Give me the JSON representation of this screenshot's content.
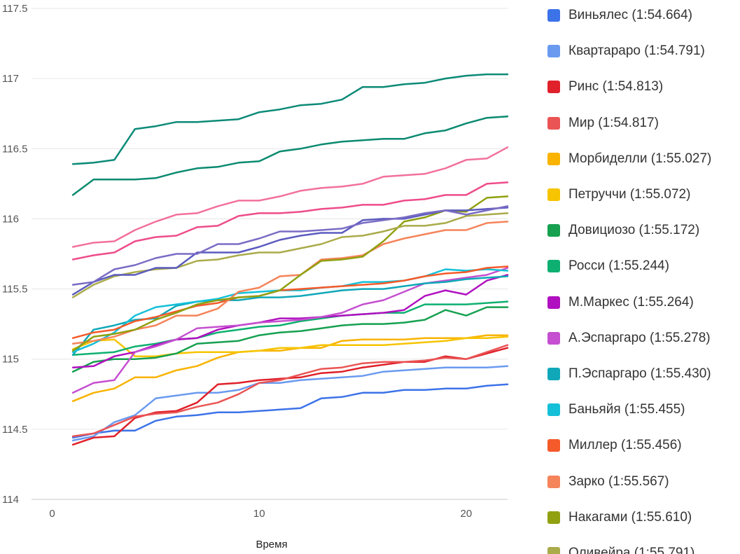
{
  "chart_data": {
    "type": "line",
    "title": "",
    "xlabel": "Время",
    "ylabel": "",
    "xlim": [
      -1,
      22
    ],
    "ylim": [
      114,
      117.5
    ],
    "x_ticks": [
      0,
      10,
      20
    ],
    "y_ticks": [
      114,
      114.5,
      115,
      115.5,
      116,
      116.5,
      117,
      117.5
    ],
    "x_tick_labels": [
      "0",
      "10",
      "20"
    ],
    "y_tick_labels": [
      "114",
      "114.5",
      "115",
      "115.5",
      "116",
      "116.5",
      "117",
      "117.5"
    ],
    "grid": "horizontal",
    "legend_position": "right",
    "x": [
      1,
      2,
      3,
      4,
      5,
      6,
      7,
      8,
      9,
      10,
      11,
      12,
      13,
      14,
      15,
      16,
      17,
      18,
      19,
      20,
      21,
      22
    ],
    "series": [
      {
        "name": "Виньялес (1:54.664)",
        "color": "#3d73e8",
        "values": [
          114.44,
          114.47,
          114.49,
          114.49,
          114.56,
          114.59,
          114.6,
          114.62,
          114.62,
          114.63,
          114.64,
          114.65,
          114.72,
          114.73,
          114.76,
          114.76,
          114.78,
          114.78,
          114.79,
          114.79,
          114.81,
          114.82
        ]
      },
      {
        "name": "Квартараро (1:54.791)",
        "color": "#6a9af0",
        "values": [
          114.42,
          114.45,
          114.55,
          114.6,
          114.72,
          114.74,
          114.76,
          114.76,
          114.78,
          114.83,
          114.83,
          114.85,
          114.86,
          114.87,
          114.88,
          114.91,
          114.92,
          114.93,
          114.94,
          114.94,
          114.94,
          114.95
        ]
      },
      {
        "name": "Ринс (1:54.813)",
        "color": "#e0202a",
        "values": [
          114.39,
          114.44,
          114.45,
          114.58,
          114.62,
          114.63,
          114.69,
          114.82,
          114.83,
          114.85,
          114.86,
          114.87,
          114.9,
          114.91,
          114.94,
          114.96,
          114.98,
          114.98,
          115.02,
          115.0,
          115.04,
          115.08
        ]
      },
      {
        "name": "Мир (1:54.817)",
        "color": "#ea5454",
        "values": [
          114.45,
          114.47,
          114.53,
          114.59,
          114.61,
          114.62,
          114.66,
          114.69,
          114.75,
          114.83,
          114.85,
          114.89,
          114.93,
          114.94,
          114.97,
          114.98,
          114.98,
          114.99,
          115.01,
          115.0,
          115.05,
          115.1
        ]
      },
      {
        "name": "Морбиделли (1:55.027)",
        "color": "#f9b300",
        "values": [
          114.7,
          114.76,
          114.79,
          114.87,
          114.87,
          114.92,
          114.95,
          115.01,
          115.05,
          115.06,
          115.06,
          115.08,
          115.08,
          115.13,
          115.14,
          115.14,
          115.14,
          115.15,
          115.15,
          115.15,
          115.17,
          115.17
        ]
      },
      {
        "name": "Петруччи (1:55.072)",
        "color": "#f6c400",
        "values": [
          115.07,
          115.13,
          115.14,
          115.02,
          115.02,
          115.04,
          115.05,
          115.05,
          115.05,
          115.06,
          115.08,
          115.08,
          115.1,
          115.1,
          115.1,
          115.1,
          115.11,
          115.12,
          115.13,
          115.15,
          115.15,
          115.16
        ]
      },
      {
        "name": "Довициозо (1:55.172)",
        "color": "#16a050",
        "values": [
          114.91,
          114.98,
          115.0,
          115.0,
          115.01,
          115.04,
          115.11,
          115.12,
          115.13,
          115.17,
          115.19,
          115.2,
          115.22,
          115.24,
          115.25,
          115.25,
          115.26,
          115.28,
          115.35,
          115.31,
          115.37,
          115.37
        ]
      },
      {
        "name": "Росси (1:55.244)",
        "color": "#0db070",
        "values": [
          115.03,
          115.04,
          115.05,
          115.09,
          115.11,
          115.14,
          115.15,
          115.19,
          115.21,
          115.23,
          115.24,
          115.27,
          115.29,
          115.31,
          115.32,
          115.33,
          115.33,
          115.39,
          115.39,
          115.39,
          115.4,
          115.41
        ]
      },
      {
        "name": "М.Маркес (1:55.264)",
        "color": "#b010c0",
        "values": [
          114.94,
          114.95,
          115.02,
          115.05,
          115.1,
          115.14,
          115.15,
          115.21,
          115.24,
          115.26,
          115.29,
          115.29,
          115.3,
          115.31,
          115.32,
          115.33,
          115.35,
          115.45,
          115.49,
          115.46,
          115.56,
          115.6
        ]
      },
      {
        "name": "А.Эспаргаро (1:55.278)",
        "color": "#c54fd0",
        "values": [
          114.76,
          114.83,
          114.85,
          115.05,
          115.09,
          115.14,
          115.22,
          115.23,
          115.24,
          115.26,
          115.27,
          115.28,
          115.3,
          115.33,
          115.39,
          115.42,
          115.48,
          115.54,
          115.56,
          115.58,
          115.6,
          115.65
        ]
      },
      {
        "name": "П.Эспаргаро (1:55.430)",
        "color": "#10a8b8",
        "values": [
          115.03,
          115.21,
          115.24,
          115.28,
          115.29,
          115.38,
          115.41,
          115.42,
          115.42,
          115.44,
          115.44,
          115.45,
          115.47,
          115.49,
          115.5,
          115.5,
          115.52,
          115.54,
          115.55,
          115.57,
          115.58,
          115.59
        ]
      },
      {
        "name": "Баньяйя (1:55.455)",
        "color": "#14c0d8",
        "values": [
          115.05,
          115.11,
          115.19,
          115.31,
          115.37,
          115.39,
          115.41,
          115.43,
          115.47,
          115.48,
          115.49,
          115.49,
          115.51,
          115.52,
          115.55,
          115.55,
          115.56,
          115.59,
          115.64,
          115.63,
          115.64,
          115.63
        ]
      },
      {
        "name": "Миллер (1:55.456)",
        "color": "#f45a2a",
        "values": [
          115.15,
          115.19,
          115.21,
          115.27,
          115.3,
          115.34,
          115.38,
          115.4,
          115.44,
          115.45,
          115.49,
          115.5,
          115.51,
          115.52,
          115.53,
          115.54,
          115.56,
          115.59,
          115.61,
          115.62,
          115.65,
          115.66
        ]
      },
      {
        "name": "Зарко (1:55.567)",
        "color": "#f5845a",
        "values": [
          115.11,
          115.13,
          115.16,
          115.21,
          115.24,
          115.31,
          115.31,
          115.36,
          115.48,
          115.51,
          115.59,
          115.6,
          115.71,
          115.72,
          115.74,
          115.82,
          115.86,
          115.89,
          115.92,
          115.92,
          115.97,
          115.98
        ]
      },
      {
        "name": "Накагами (1:55.610)",
        "color": "#90a010",
        "values": [
          115.06,
          115.16,
          115.18,
          115.21,
          115.28,
          115.33,
          115.39,
          115.42,
          115.44,
          115.45,
          115.49,
          115.6,
          115.7,
          115.71,
          115.73,
          115.84,
          115.98,
          116.01,
          116.06,
          116.05,
          116.15,
          116.16
        ]
      },
      {
        "name": "Оливейра (1:55.791)",
        "color": "#aaab4a",
        "values": [
          115.44,
          115.53,
          115.59,
          115.62,
          115.64,
          115.65,
          115.7,
          115.71,
          115.74,
          115.76,
          115.76,
          115.79,
          115.82,
          115.87,
          115.88,
          115.91,
          115.95,
          115.95,
          115.97,
          116.02,
          116.03,
          116.04
        ]
      },
      {
        "color": "#5b5bbf",
        "values": [
          115.46,
          115.55,
          115.6,
          115.6,
          115.65,
          115.65,
          115.76,
          115.76,
          115.76,
          115.8,
          115.85,
          115.88,
          115.9,
          115.9,
          115.99,
          116.0,
          116.0,
          116.03,
          116.06,
          116.06,
          116.07,
          116.08
        ]
      },
      {
        "color": "#7a6cc4",
        "values": [
          115.53,
          115.55,
          115.64,
          115.67,
          115.72,
          115.75,
          115.75,
          115.82,
          115.82,
          115.86,
          115.91,
          115.91,
          115.92,
          115.93,
          115.97,
          115.99,
          116.01,
          116.04,
          116.06,
          116.03,
          116.06,
          116.09
        ]
      },
      {
        "color": "#ee4c8a",
        "values": [
          115.71,
          115.74,
          115.76,
          115.84,
          115.87,
          115.88,
          115.94,
          115.95,
          116.02,
          116.04,
          116.04,
          116.05,
          116.07,
          116.08,
          116.1,
          116.1,
          116.13,
          116.14,
          116.17,
          116.17,
          116.25,
          116.26
        ]
      },
      {
        "color": "#f2709e",
        "values": [
          115.8,
          115.83,
          115.84,
          115.92,
          115.98,
          116.03,
          116.04,
          116.09,
          116.13,
          116.13,
          116.16,
          116.2,
          116.22,
          116.23,
          116.25,
          116.3,
          116.31,
          116.32,
          116.36,
          116.42,
          116.43,
          116.51
        ]
      },
      {
        "color": "#0a8a70",
        "values": [
          116.17,
          116.28,
          116.28,
          116.28,
          116.29,
          116.33,
          116.36,
          116.37,
          116.4,
          116.41,
          116.48,
          116.5,
          116.53,
          116.55,
          116.56,
          116.57,
          116.57,
          116.61,
          116.63,
          116.68,
          116.72,
          116.73
        ]
      },
      {
        "color": "#0c8a78",
        "values": [
          116.39,
          116.4,
          116.42,
          116.64,
          116.66,
          116.69,
          116.69,
          116.7,
          116.71,
          116.76,
          116.78,
          116.81,
          116.82,
          116.85,
          116.94,
          116.94,
          116.96,
          116.97,
          117.0,
          117.02,
          117.03,
          117.03
        ]
      }
    ]
  }
}
